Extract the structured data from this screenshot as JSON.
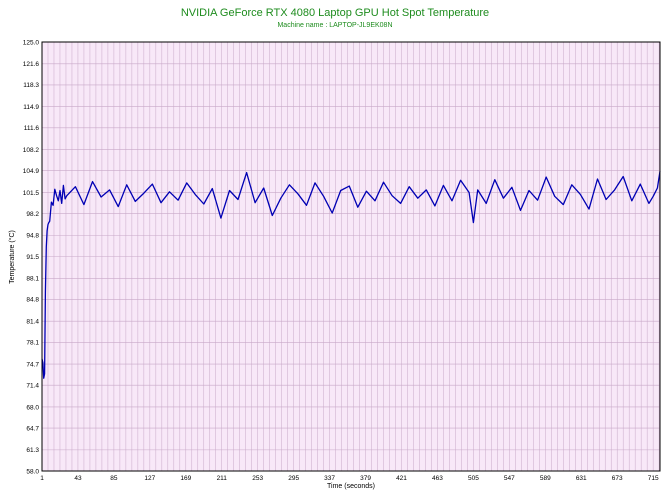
{
  "chart_data": {
    "type": "line",
    "title": "NVIDIA GeForce RTX 4080 Laptop GPU Hot Spot Temperature",
    "subtitle": "Machine name : LAPTOP-JL9EK08N",
    "xlabel": "Time (seconds)",
    "ylabel": "Temperature (°C)",
    "xlim": [
      1,
      723
    ],
    "ylim": [
      58.0,
      125.0
    ],
    "x_ticks": [
      1,
      43,
      85,
      127,
      169,
      211,
      253,
      295,
      337,
      379,
      421,
      463,
      505,
      547,
      589,
      631,
      673,
      715
    ],
    "y_ticks": [
      58.0,
      61.3,
      64.7,
      68.0,
      71.4,
      74.7,
      78.1,
      81.4,
      84.8,
      88.1,
      91.5,
      94.8,
      98.2,
      101.5,
      104.9,
      108.2,
      111.6,
      114.9,
      118.3,
      121.6,
      125.0
    ],
    "grid": true,
    "colors": {
      "line": "#0000b4",
      "plot_bg": "#f8e8f8",
      "grid": "#c8a8c8",
      "title": "#1e8c1e"
    },
    "series": [
      {
        "x": [
          1,
          2,
          3,
          4,
          5,
          6,
          7,
          8,
          9,
          10,
          12,
          14,
          16,
          18,
          20,
          22,
          24,
          26,
          28,
          30,
          40,
          50,
          60,
          70,
          80,
          90,
          100,
          110,
          120,
          130,
          140,
          150,
          160,
          170,
          180,
          190,
          200,
          210,
          220,
          230,
          240,
          250,
          260,
          270,
          280,
          290,
          300,
          310,
          320,
          330,
          340,
          350,
          360,
          370,
          380,
          390,
          400,
          410,
          420,
          430,
          440,
          450,
          460,
          470,
          480,
          490,
          500,
          505,
          510,
          520,
          530,
          540,
          550,
          560,
          570,
          580,
          590,
          600,
          610,
          620,
          630,
          640,
          650,
          660,
          670,
          680,
          690,
          700,
          710,
          715,
          720,
          723
        ],
        "values": [
          75.5,
          74.9,
          72.5,
          73.2,
          86.0,
          93.0,
          95.5,
          96.5,
          96.8,
          97.0,
          100.0,
          99.5,
          102.0,
          101.0,
          100.2,
          101.8,
          99.8,
          102.6,
          100.5,
          101.0,
          102.4,
          99.6,
          103.2,
          100.8,
          101.9,
          99.3,
          102.7,
          100.1,
          101.4,
          102.8,
          99.9,
          101.6,
          100.3,
          103.0,
          101.2,
          99.7,
          102.1,
          97.5,
          101.8,
          100.4,
          104.6,
          99.9,
          102.2,
          97.9,
          100.6,
          102.7,
          101.3,
          99.5,
          103.0,
          100.9,
          98.3,
          101.8,
          102.5,
          99.2,
          101.7,
          100.2,
          103.1,
          101.0,
          99.8,
          102.4,
          100.6,
          101.9,
          99.4,
          102.6,
          100.2,
          103.4,
          101.5,
          96.8,
          101.9,
          99.8,
          103.5,
          100.6,
          102.3,
          98.7,
          101.8,
          100.3,
          103.9,
          100.9,
          99.6,
          102.7,
          101.2,
          98.9,
          103.6,
          100.4,
          101.9,
          104.0,
          100.2,
          102.8,
          99.8,
          100.9,
          102.2,
          104.8
        ]
      }
    ]
  }
}
